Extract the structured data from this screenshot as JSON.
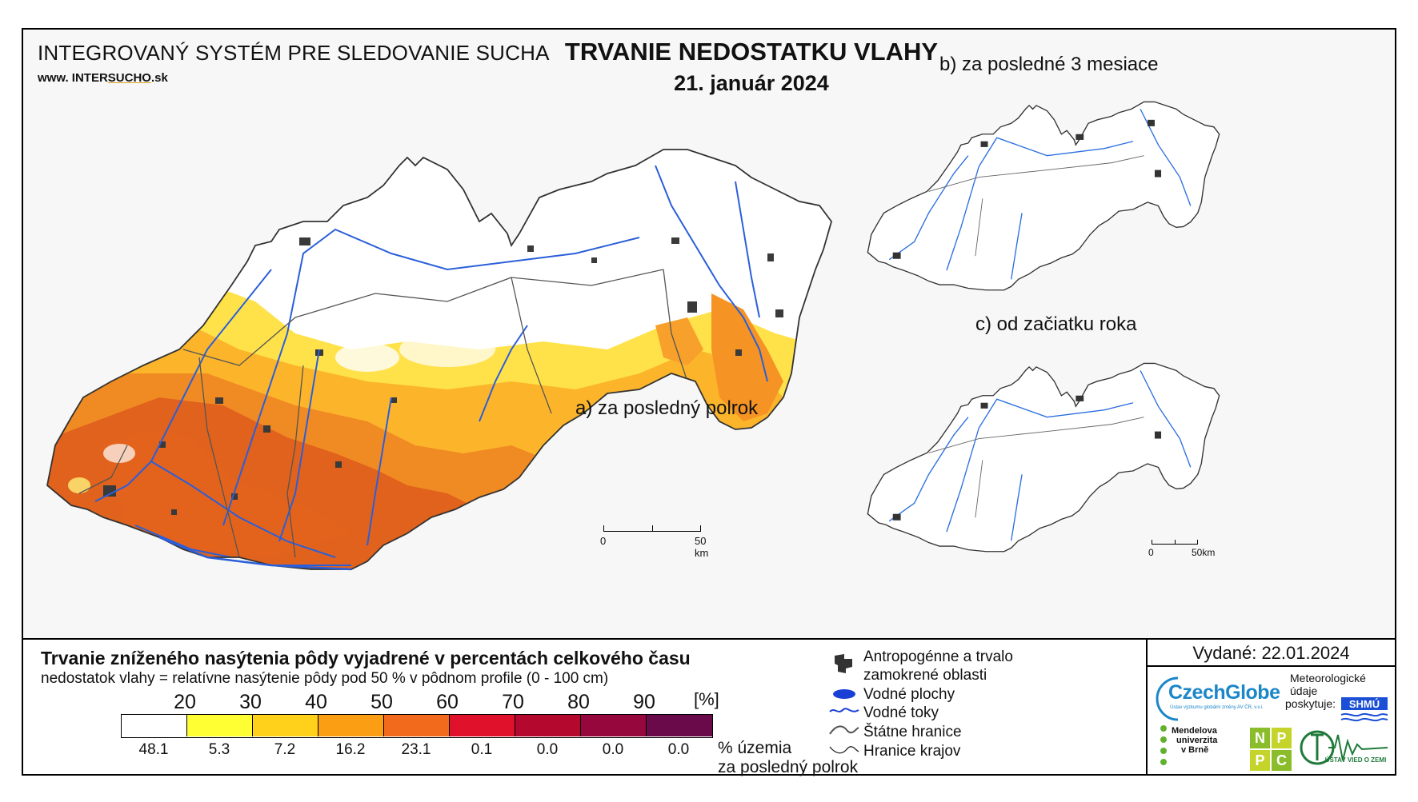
{
  "header": {
    "system_title": "INTEGROVANÝ SYSTÉM PRE SLEDOVANIE SUCHA",
    "url_prefix": "www. INTER",
    "url_mid": "SUCHO",
    "url_suffix": ".sk",
    "main_title": "TRVANIE NEDOSTATKU VLAHY",
    "date": "21. január 2024"
  },
  "panels": {
    "a": "a) za posledný polrok",
    "b": "b) za posledné 3 mesiace",
    "c": "c) od začiatku roka"
  },
  "scale_main": {
    "zero": "0",
    "end": "50 km"
  },
  "scale_small": {
    "zero": "0",
    "end": "50km"
  },
  "legend": {
    "title": "Trvanie zníženého nasýtenia pôdy vyjadrené v percentách celkového času",
    "subtitle": "nedostatok vlahy = relatívne nasýtenie pôdy pod 50 % v pôdnom profile (0 - 100 cm)",
    "ticks": [
      "20",
      "30",
      "40",
      "50",
      "60",
      "70",
      "80",
      "90"
    ],
    "unit": "[%]",
    "colors": [
      "#ffffff",
      "#ffff33",
      "#ffd11a",
      "#fb9e14",
      "#f26a1b",
      "#e0122b",
      "#b5082e",
      "#96073e",
      "#6a0a4a"
    ],
    "percents": [
      "48.1",
      "5.3",
      "7.2",
      "16.2",
      "23.1",
      "0.1",
      "0.0",
      "0.0",
      "0.0"
    ],
    "percent_label_1": "% územia",
    "percent_label_2": "za posledný polrok"
  },
  "symbols": {
    "anthropogenic_1": "Antropogénne a trvalo",
    "anthropogenic_2": "zamokrené oblasti",
    "water_bodies": "Vodné plochy",
    "water_courses": "Vodné toky",
    "state_border": "Štátne hranice",
    "region_border": "Hranice krajov"
  },
  "issued": "Vydané: 22.01.2024",
  "logos": {
    "czechglobe": "CzechGlobe",
    "czechglobe_sub": "Ústav výzkumu globální změny AV ČR, v.v.i.",
    "meteo_1": "Meteorologické",
    "meteo_2": "údaje",
    "meteo_3": "poskytuje:",
    "shmu": "SHMÚ",
    "mendel_1": "Mendelova",
    "mendel_2": "univerzita",
    "mendel_3": "v Brně",
    "nppc": [
      "N",
      "P",
      "P",
      "C"
    ],
    "uvz": "ÚSTAV VIED O ZEMI"
  }
}
